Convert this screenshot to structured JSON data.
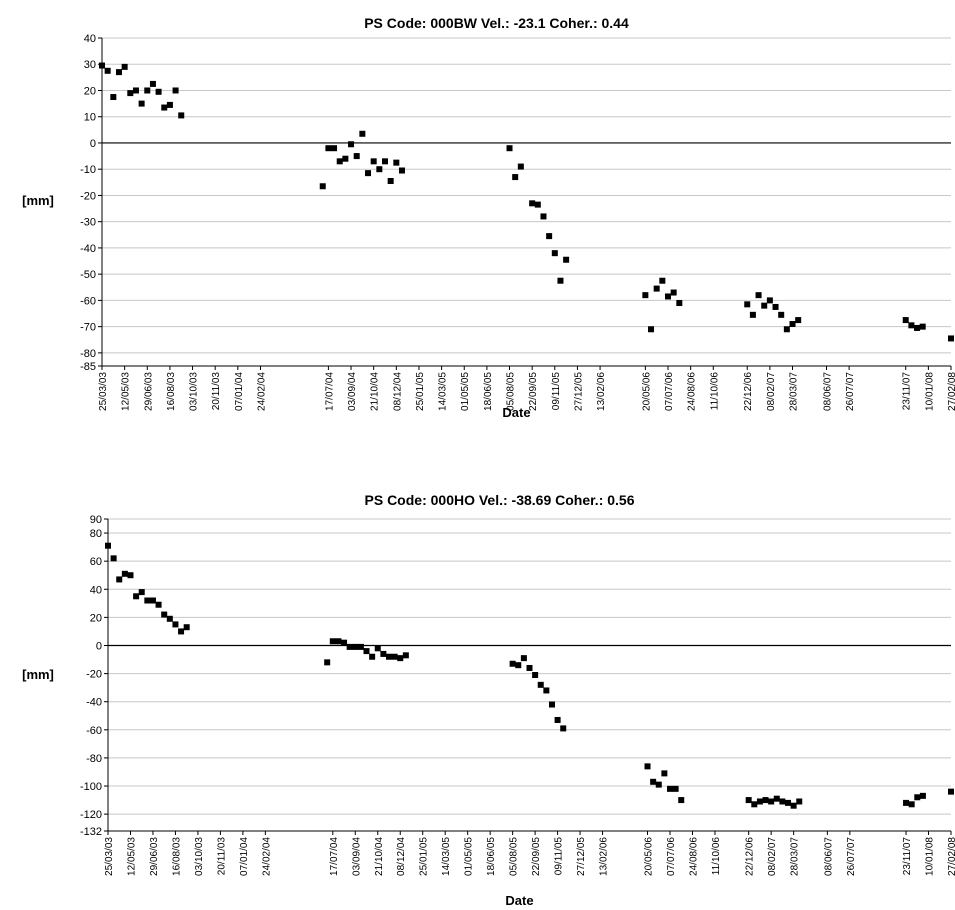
{
  "chart_data": [
    {
      "type": "scatter",
      "title": "PS Code: 000BW   Vel.:  -23.1   Coher.: 0.44",
      "xlabel": "Date",
      "ylabel": "[mm]",
      "ylim": [
        -85,
        40
      ],
      "yticks": [
        40,
        30,
        20,
        10,
        0,
        -10,
        -20,
        -30,
        -40,
        -50,
        -60,
        -70,
        -80,
        -85
      ],
      "xlim": [
        "25/03/03",
        "27/02/08"
      ],
      "xticks": [
        "25/03/03",
        "12/05/03",
        "29/06/03",
        "16/08/03",
        "03/10/03",
        "20/11/03",
        "07/01/04",
        "24/02/04",
        "17/07/04",
        "03/09/04",
        "21/10/04",
        "08/12/04",
        "25/01/05",
        "14/03/05",
        "01/05/05",
        "18/06/05",
        "05/08/05",
        "22/09/05",
        "09/11/05",
        "27/12/05",
        "13/02/06",
        "20/05/06",
        "07/07/06",
        "24/08/06",
        "11/10/06",
        "22/12/06",
        "08/02/07",
        "28/03/07",
        "08/06/07",
        "26/07/07",
        "23/11/07",
        "10/01/08",
        "27/02/08"
      ],
      "grid": true,
      "zero_line": true,
      "series": [
        {
          "color": "#000000",
          "points": [
            {
              "x": "25/03/03",
              "y": 29.5
            },
            {
              "x": "06/04/03",
              "y": 27.5
            },
            {
              "x": "18/04/03",
              "y": 17.5
            },
            {
              "x": "30/04/03",
              "y": 27
            },
            {
              "x": "12/05/03",
              "y": 29
            },
            {
              "x": "24/05/03",
              "y": 19
            },
            {
              "x": "05/06/03",
              "y": 20
            },
            {
              "x": "17/06/03",
              "y": 15
            },
            {
              "x": "29/06/03",
              "y": 20
            },
            {
              "x": "11/07/03",
              "y": 22.5
            },
            {
              "x": "23/07/03",
              "y": 19.5
            },
            {
              "x": "04/08/03",
              "y": 13.5
            },
            {
              "x": "16/08/03",
              "y": 14.5
            },
            {
              "x": "28/08/03",
              "y": 20
            },
            {
              "x": "09/09/03",
              "y": 10.5
            },
            {
              "x": "05/07/04",
              "y": -16.5
            },
            {
              "x": "17/07/04",
              "y": -2
            },
            {
              "x": "29/07/04",
              "y": -2
            },
            {
              "x": "10/08/04",
              "y": -7
            },
            {
              "x": "22/08/04",
              "y": -6
            },
            {
              "x": "03/09/04",
              "y": -0.5
            },
            {
              "x": "15/09/04",
              "y": -5
            },
            {
              "x": "27/09/04",
              "y": 3.5
            },
            {
              "x": "09/10/04",
              "y": -11.5
            },
            {
              "x": "21/10/04",
              "y": -7
            },
            {
              "x": "02/11/04",
              "y": -10
            },
            {
              "x": "14/11/04",
              "y": -7
            },
            {
              "x": "26/11/04",
              "y": -14.5
            },
            {
              "x": "08/12/04",
              "y": -7.5
            },
            {
              "x": "20/12/04",
              "y": -10.5
            },
            {
              "x": "05/08/05",
              "y": -2
            },
            {
              "x": "17/08/05",
              "y": -13
            },
            {
              "x": "29/08/05",
              "y": -9
            },
            {
              "x": "22/09/05",
              "y": -23
            },
            {
              "x": "04/10/05",
              "y": -23.5
            },
            {
              "x": "16/10/05",
              "y": -28
            },
            {
              "x": "28/10/05",
              "y": -35.5
            },
            {
              "x": "09/11/05",
              "y": -42
            },
            {
              "x": "21/11/05",
              "y": -52.5
            },
            {
              "x": "03/12/05",
              "y": -44.5
            },
            {
              "x": "20/05/06",
              "y": -58
            },
            {
              "x": "01/06/06",
              "y": -71
            },
            {
              "x": "13/06/06",
              "y": -55.5
            },
            {
              "x": "25/06/06",
              "y": -52.5
            },
            {
              "x": "07/07/06",
              "y": -58.5
            },
            {
              "x": "19/07/06",
              "y": -57
            },
            {
              "x": "31/07/06",
              "y": -61
            },
            {
              "x": "22/12/06",
              "y": -61.5
            },
            {
              "x": "03/01/07",
              "y": -65.5
            },
            {
              "x": "15/01/07",
              "y": -58
            },
            {
              "x": "27/01/07",
              "y": -62
            },
            {
              "x": "08/02/07",
              "y": -60
            },
            {
              "x": "20/02/07",
              "y": -62.5
            },
            {
              "x": "04/03/07",
              "y": -65.5
            },
            {
              "x": "16/03/07",
              "y": -71
            },
            {
              "x": "28/03/07",
              "y": -69
            },
            {
              "x": "09/04/07",
              "y": -67.5
            },
            {
              "x": "23/11/07",
              "y": -67.5
            },
            {
              "x": "05/12/07",
              "y": -69.5
            },
            {
              "x": "17/12/07",
              "y": -70.5
            },
            {
              "x": "29/12/07",
              "y": -70
            },
            {
              "x": "27/02/08",
              "y": -74.5
            }
          ]
        }
      ]
    },
    {
      "type": "scatter",
      "title": "PS Code: 000HO   Vel.:  -38.69   Coher.: 0.56",
      "xlabel": "Date",
      "ylabel": "[mm]",
      "ylim": [
        -132,
        90
      ],
      "yticks": [
        90,
        80,
        60,
        40,
        20,
        0,
        -20,
        -40,
        -60,
        -80,
        -100,
        -120,
        -132
      ],
      "xlim": [
        "25/03/03",
        "27/02/08"
      ],
      "xticks": [
        "25/03/03",
        "12/05/03",
        "29/06/03",
        "16/08/03",
        "03/10/03",
        "20/11/03",
        "07/01/04",
        "24/02/04",
        "17/07/04",
        "03/09/04",
        "21/10/04",
        "08/12/04",
        "25/01/05",
        "14/03/05",
        "01/05/05",
        "18/06/05",
        "05/08/05",
        "22/09/05",
        "09/11/05",
        "27/12/05",
        "13/02/06",
        "20/05/06",
        "07/07/06",
        "24/08/06",
        "11/10/06",
        "22/12/06",
        "08/02/07",
        "28/03/07",
        "08/06/07",
        "26/07/07",
        "23/11/07",
        "10/01/08",
        "27/02/08"
      ],
      "grid": true,
      "zero_line": true,
      "series": [
        {
          "color": "#000000",
          "points": [
            {
              "x": "25/03/03",
              "y": 71
            },
            {
              "x": "06/04/03",
              "y": 62
            },
            {
              "x": "18/04/03",
              "y": 47
            },
            {
              "x": "30/04/03",
              "y": 51
            },
            {
              "x": "12/05/03",
              "y": 50
            },
            {
              "x": "24/05/03",
              "y": 35
            },
            {
              "x": "05/06/03",
              "y": 38
            },
            {
              "x": "17/06/03",
              "y": 32
            },
            {
              "x": "29/06/03",
              "y": 32
            },
            {
              "x": "11/07/03",
              "y": 29
            },
            {
              "x": "23/07/03",
              "y": 22
            },
            {
              "x": "04/08/03",
              "y": 19
            },
            {
              "x": "16/08/03",
              "y": 15
            },
            {
              "x": "28/08/03",
              "y": 10
            },
            {
              "x": "09/09/03",
              "y": 13
            },
            {
              "x": "05/07/04",
              "y": -12
            },
            {
              "x": "17/07/04",
              "y": 3
            },
            {
              "x": "29/07/04",
              "y": 3
            },
            {
              "x": "10/08/04",
              "y": 2
            },
            {
              "x": "22/08/04",
              "y": -1
            },
            {
              "x": "03/09/04",
              "y": -1
            },
            {
              "x": "15/09/04",
              "y": -1
            },
            {
              "x": "27/09/04",
              "y": -4
            },
            {
              "x": "09/10/04",
              "y": -8
            },
            {
              "x": "21/10/04",
              "y": -2
            },
            {
              "x": "02/11/04",
              "y": -6
            },
            {
              "x": "14/11/04",
              "y": -8
            },
            {
              "x": "26/11/04",
              "y": -8
            },
            {
              "x": "08/12/04",
              "y": -9
            },
            {
              "x": "20/12/04",
              "y": -7
            },
            {
              "x": "05/08/05",
              "y": -13
            },
            {
              "x": "17/08/05",
              "y": -14
            },
            {
              "x": "29/08/05",
              "y": -9
            },
            {
              "x": "10/09/05",
              "y": -16
            },
            {
              "x": "22/09/05",
              "y": -21
            },
            {
              "x": "04/10/05",
              "y": -28
            },
            {
              "x": "16/10/05",
              "y": -32
            },
            {
              "x": "28/10/05",
              "y": -42
            },
            {
              "x": "09/11/05",
              "y": -53
            },
            {
              "x": "21/11/05",
              "y": -59
            },
            {
              "x": "20/05/06",
              "y": -86
            },
            {
              "x": "01/06/06",
              "y": -97
            },
            {
              "x": "13/06/06",
              "y": -99
            },
            {
              "x": "25/06/06",
              "y": -91
            },
            {
              "x": "07/07/06",
              "y": -102
            },
            {
              "x": "19/07/06",
              "y": -102
            },
            {
              "x": "31/07/06",
              "y": -110
            },
            {
              "x": "22/12/06",
              "y": -110
            },
            {
              "x": "03/01/07",
              "y": -113
            },
            {
              "x": "15/01/07",
              "y": -111
            },
            {
              "x": "27/01/07",
              "y": -110
            },
            {
              "x": "08/02/07",
              "y": -111
            },
            {
              "x": "20/02/07",
              "y": -109
            },
            {
              "x": "04/03/07",
              "y": -111
            },
            {
              "x": "16/03/07",
              "y": -112
            },
            {
              "x": "28/03/07",
              "y": -114
            },
            {
              "x": "09/04/07",
              "y": -111
            },
            {
              "x": "23/11/07",
              "y": -112
            },
            {
              "x": "05/12/07",
              "y": -113
            },
            {
              "x": "17/12/07",
              "y": -108
            },
            {
              "x": "29/12/07",
              "y": -107
            },
            {
              "x": "27/02/08",
              "y": -104
            }
          ]
        }
      ]
    }
  ]
}
